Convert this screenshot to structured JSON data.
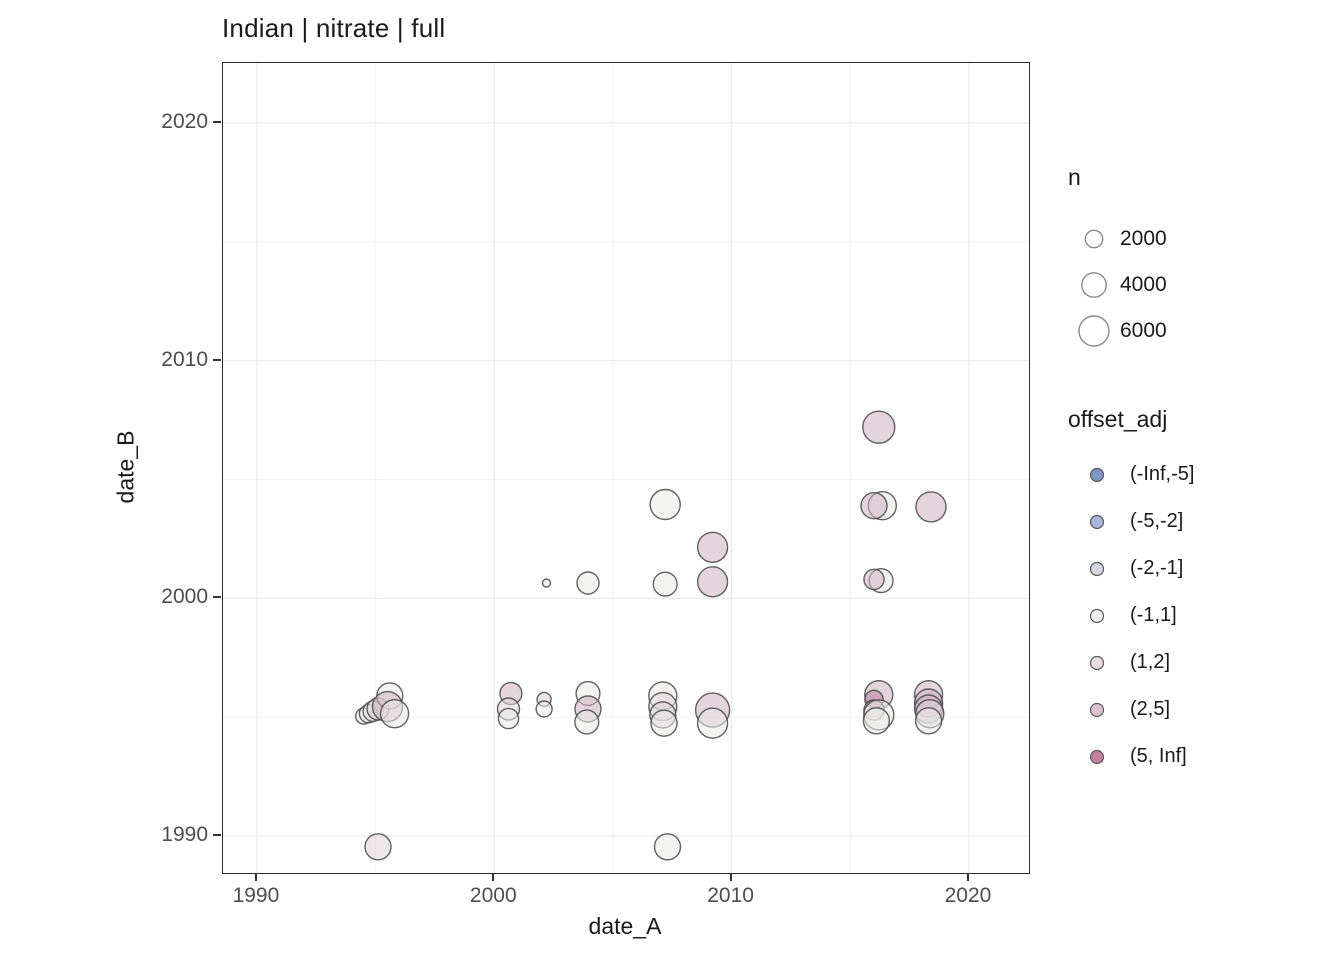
{
  "title": "Indian | nitrate | full",
  "axes": {
    "x_label": "date_A",
    "y_label": "date_B"
  },
  "legend_n": {
    "title": "n",
    "items": [
      {
        "label": "2000",
        "r": 8.7
      },
      {
        "label": "4000",
        "r": 12.2
      },
      {
        "label": "6000",
        "r": 15
      }
    ]
  },
  "legend_offset": {
    "title": "offset_adj",
    "items": [
      {
        "label": "(-Inf,-5]",
        "color": "#7d96c6"
      },
      {
        "label": "(-5,-2]",
        "color": "#a9b4d6"
      },
      {
        "label": "(-2,-1]",
        "color": "#d3d7e4"
      },
      {
        "label": "(-1,1]",
        "color": "#efefee"
      },
      {
        "label": "(1,2]",
        "color": "#e8dce2"
      },
      {
        "label": "(2,5]",
        "color": "#dcc2ce"
      },
      {
        "label": "(5, Inf]",
        "color": "#c2819f"
      }
    ]
  },
  "chart_data": {
    "type": "scatter",
    "title": "Indian | nitrate | full",
    "xlabel": "date_A",
    "ylabel": "date_B",
    "xlim": [
      1988.57,
      2022.53
    ],
    "ylim": [
      1988.45,
      2022.52
    ],
    "x_major_ticks": [
      1990,
      2000,
      2010,
      2020
    ],
    "x_minor_ticks": [
      1995,
      2005,
      2015
    ],
    "y_major_ticks": [
      1990,
      2000,
      2010,
      2020
    ],
    "y_minor_ticks": [
      1995,
      2005,
      2015
    ],
    "grid": true,
    "legend_position": "right",
    "size_scale": {
      "legend_values": [
        2000,
        4000,
        6000
      ],
      "radius_at_6000_px": 15
    },
    "fill_opacity": 0.55,
    "stroke_color": "#474747",
    "major_grid_color": "#ebebeb",
    "minor_grid_color": "#f4f4f4",
    "bin_colors": {
      "(-Inf,-5]": "#7d96c6",
      "(-5,-2]": "#a9b4d6",
      "(-2,-1]": "#d3d7e4",
      "(-1,1]": "#e9e9e7",
      "(1,2]": "#ded4d9",
      "(2,5]": "#ceb0bf",
      "(5, Inf]": "#b87f9c"
    },
    "points": [
      {
        "x": 1994.5,
        "y": 1995.05,
        "n": 1700,
        "bin": "(-1,1]"
      },
      {
        "x": 1994.7,
        "y": 1995.15,
        "n": 2200,
        "bin": "(-1,1]"
      },
      {
        "x": 1994.9,
        "y": 1995.25,
        "n": 2700,
        "bin": "(-1,1]"
      },
      {
        "x": 1995.1,
        "y": 1995.35,
        "n": 3200,
        "bin": "(1,2]"
      },
      {
        "x": 1995.6,
        "y": 1995.9,
        "n": 4500,
        "bin": "(-1,1]"
      },
      {
        "x": 1995.5,
        "y": 1995.45,
        "n": 6000,
        "bin": "(2,5]"
      },
      {
        "x": 1995.8,
        "y": 1995.15,
        "n": 5200,
        "bin": "(-1,1]"
      },
      {
        "x": 1995.1,
        "y": 1989.55,
        "n": 4500,
        "bin": "(1,2]"
      },
      {
        "x": 2000.7,
        "y": 1996.0,
        "n": 3200,
        "bin": "(2,5]"
      },
      {
        "x": 2000.6,
        "y": 1995.35,
        "n": 3200,
        "bin": "(1,2]"
      },
      {
        "x": 2000.6,
        "y": 1994.95,
        "n": 2700,
        "bin": "(-1,1]"
      },
      {
        "x": 2002.1,
        "y": 1995.75,
        "n": 1300,
        "bin": "(1,2]"
      },
      {
        "x": 2002.1,
        "y": 1995.35,
        "n": 1700,
        "bin": "(-1,1]"
      },
      {
        "x": 2002.2,
        "y": 2000.65,
        "n": 430,
        "bin": "(-1,1]"
      },
      {
        "x": 2003.95,
        "y": 2000.65,
        "n": 3200,
        "bin": "(-1,1]"
      },
      {
        "x": 2003.95,
        "y": 1996.0,
        "n": 3800,
        "bin": "(-1,1]"
      },
      {
        "x": 2003.95,
        "y": 1995.35,
        "n": 4500,
        "bin": "(2,5]"
      },
      {
        "x": 2003.9,
        "y": 1994.8,
        "n": 3800,
        "bin": "(-1,1]"
      },
      {
        "x": 2007.2,
        "y": 2003.95,
        "n": 6000,
        "bin": "(-1,1]"
      },
      {
        "x": 2007.2,
        "y": 2000.6,
        "n": 3800,
        "bin": "(-1,1]"
      },
      {
        "x": 2009.2,
        "y": 2002.15,
        "n": 6000,
        "bin": "(2,5]"
      },
      {
        "x": 2009.2,
        "y": 2000.7,
        "n": 6000,
        "bin": "(2,5]"
      },
      {
        "x": 2007.1,
        "y": 1995.9,
        "n": 5200,
        "bin": "(-1,1]"
      },
      {
        "x": 2007.1,
        "y": 1995.45,
        "n": 5200,
        "bin": "(1,2]"
      },
      {
        "x": 2007.1,
        "y": 1995.1,
        "n": 4500,
        "bin": "(1,2]"
      },
      {
        "x": 2007.15,
        "y": 1994.75,
        "n": 4500,
        "bin": "(-1,1]"
      },
      {
        "x": 2009.2,
        "y": 1995.3,
        "n": 7700,
        "bin": "(2,5]"
      },
      {
        "x": 2009.2,
        "y": 1994.75,
        "n": 6000,
        "bin": "(-1,1]"
      },
      {
        "x": 2007.3,
        "y": 1989.55,
        "n": 4500,
        "bin": "(-1,1]"
      },
      {
        "x": 2016.2,
        "y": 2007.2,
        "n": 6800,
        "bin": "(2,5]"
      },
      {
        "x": 2016.35,
        "y": 2003.9,
        "n": 5200,
        "bin": "(-1,1]"
      },
      {
        "x": 2016.0,
        "y": 2003.9,
        "n": 4500,
        "bin": "(2,5]"
      },
      {
        "x": 2018.4,
        "y": 2003.85,
        "n": 6000,
        "bin": "(2,5]"
      },
      {
        "x": 2016.3,
        "y": 2000.75,
        "n": 3800,
        "bin": "(-1,1]"
      },
      {
        "x": 2016.0,
        "y": 2000.8,
        "n": 2700,
        "bin": "(2,5]"
      },
      {
        "x": 2016.2,
        "y": 1995.95,
        "n": 5200,
        "bin": "(2,5]"
      },
      {
        "x": 2016.0,
        "y": 1995.75,
        "n": 2200,
        "bin": "(5, Inf]"
      },
      {
        "x": 2016.0,
        "y": 1995.3,
        "n": 2700,
        "bin": "(2,5]"
      },
      {
        "x": 2016.2,
        "y": 1995.1,
        "n": 6000,
        "bin": "(-1,1]"
      },
      {
        "x": 2016.1,
        "y": 1994.85,
        "n": 4500,
        "bin": "(-1,1]"
      },
      {
        "x": 2018.3,
        "y": 1995.95,
        "n": 5200,
        "bin": "(2,5]"
      },
      {
        "x": 2018.3,
        "y": 1995.6,
        "n": 5200,
        "bin": "(2,5]"
      },
      {
        "x": 2018.3,
        "y": 1995.35,
        "n": 5200,
        "bin": "(2,5]"
      },
      {
        "x": 2018.35,
        "y": 1995.15,
        "n": 5200,
        "bin": "(1,2]"
      },
      {
        "x": 2018.3,
        "y": 1994.85,
        "n": 4500,
        "bin": "(-1,1]"
      }
    ]
  }
}
